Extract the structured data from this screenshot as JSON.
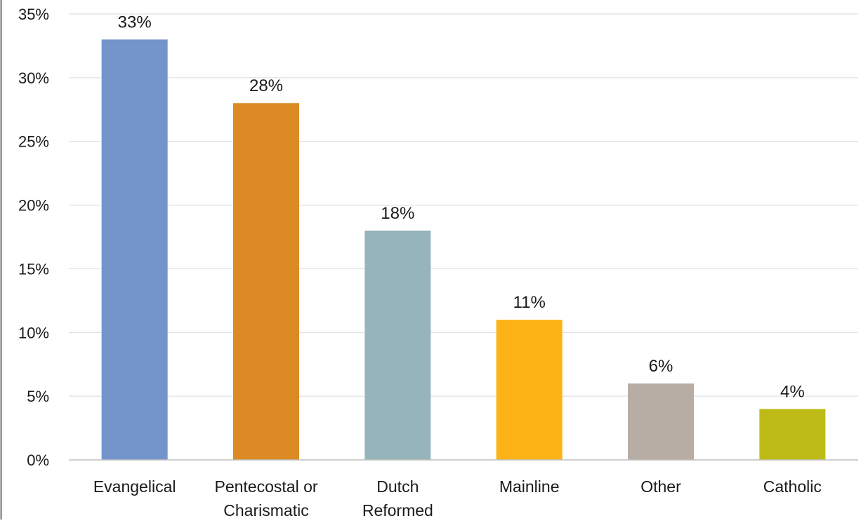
{
  "chart_data": {
    "type": "bar",
    "categories": [
      [
        "Evangelical"
      ],
      [
        "Pentecostal or",
        "Charismatic"
      ],
      [
        "Dutch",
        "Reformed"
      ],
      [
        "Mainline"
      ],
      [
        "Other"
      ],
      [
        "Catholic"
      ]
    ],
    "values": [
      33,
      28,
      18,
      11,
      6,
      4
    ],
    "data_labels": [
      "33%",
      "28%",
      "18%",
      "11%",
      "6%",
      "4%"
    ],
    "bar_colors": [
      "#7494CC",
      "#DB8A24",
      "#95B4BB",
      "#FDB216",
      "#B8ADA5",
      "#BEBB17"
    ],
    "ylim": [
      0,
      35
    ],
    "y_ticks": [
      0,
      5,
      10,
      15,
      20,
      25,
      30,
      35
    ],
    "y_tick_labels": [
      "0%",
      "5%",
      "10%",
      "15%",
      "20%",
      "25%",
      "30%",
      "35%"
    ],
    "grid": true,
    "grid_color": "#d9d9d9",
    "title": "",
    "xlabel": "",
    "ylabel": ""
  }
}
